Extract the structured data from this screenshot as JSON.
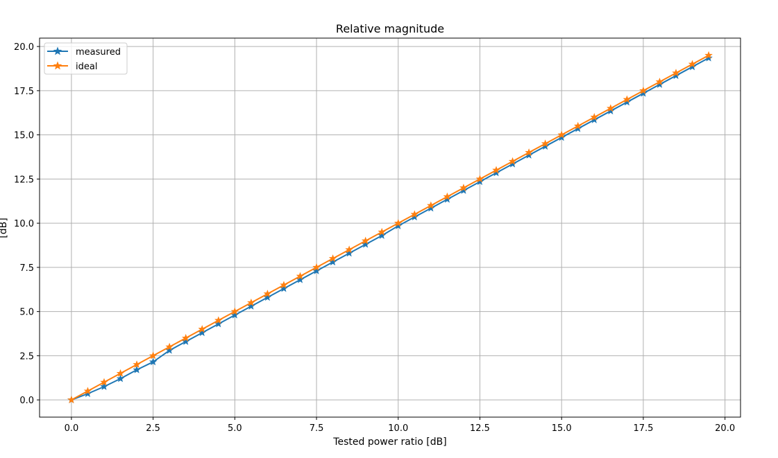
{
  "chart_data": {
    "type": "line",
    "title": "Relative magnitude",
    "xlabel": "Tested power ratio [dB]",
    "ylabel": "[dB]",
    "xlim": [
      -0.975,
      20.475
    ],
    "ylim": [
      -0.975,
      20.475
    ],
    "xticks": [
      0.0,
      2.5,
      5.0,
      7.5,
      10.0,
      12.5,
      15.0,
      17.5,
      20.0
    ],
    "yticks": [
      0.0,
      2.5,
      5.0,
      7.5,
      10.0,
      12.5,
      15.0,
      17.5,
      20.0
    ],
    "xtick_labels": [
      "0.0",
      "2.5",
      "5.0",
      "7.5",
      "10.0",
      "12.5",
      "15.0",
      "17.5",
      "20.0"
    ],
    "ytick_labels": [
      "0.0",
      "2.5",
      "5.0",
      "7.5",
      "10.0",
      "12.5",
      "15.0",
      "17.5",
      "20.0"
    ],
    "grid": true,
    "legend_position": "top-left",
    "x": [
      0.0,
      0.5,
      1.0,
      1.5,
      2.0,
      2.5,
      3.0,
      3.5,
      4.0,
      4.5,
      5.0,
      5.5,
      6.0,
      6.5,
      7.0,
      7.5,
      8.0,
      8.5,
      9.0,
      9.5,
      10.0,
      10.5,
      11.0,
      11.5,
      12.0,
      12.5,
      13.0,
      13.5,
      14.0,
      14.5,
      15.0,
      15.5,
      16.0,
      16.5,
      17.0,
      17.5,
      18.0,
      18.5,
      19.0,
      19.5
    ],
    "series": [
      {
        "name": "measured",
        "color": "#1f77b4",
        "marker": "star",
        "values": [
          0.0,
          0.35,
          0.75,
          1.2,
          1.7,
          2.15,
          2.8,
          3.3,
          3.8,
          4.3,
          4.8,
          5.3,
          5.8,
          6.3,
          6.8,
          7.3,
          7.8,
          8.3,
          8.8,
          9.3,
          9.85,
          10.35,
          10.85,
          11.35,
          11.85,
          12.35,
          12.85,
          13.35,
          13.85,
          14.35,
          14.85,
          15.35,
          15.85,
          16.35,
          16.85,
          17.35,
          17.85,
          18.35,
          18.85,
          19.35
        ]
      },
      {
        "name": "ideal",
        "color": "#ff7f0e",
        "marker": "star",
        "values": [
          0.0,
          0.5,
          1.0,
          1.5,
          2.0,
          2.5,
          3.0,
          3.5,
          4.0,
          4.5,
          5.0,
          5.5,
          6.0,
          6.5,
          7.0,
          7.5,
          8.0,
          8.5,
          9.0,
          9.5,
          10.0,
          10.5,
          11.0,
          11.5,
          12.0,
          12.5,
          13.0,
          13.5,
          14.0,
          14.5,
          15.0,
          15.5,
          16.0,
          16.5,
          17.0,
          17.5,
          18.0,
          18.5,
          19.0,
          19.5
        ]
      }
    ]
  }
}
